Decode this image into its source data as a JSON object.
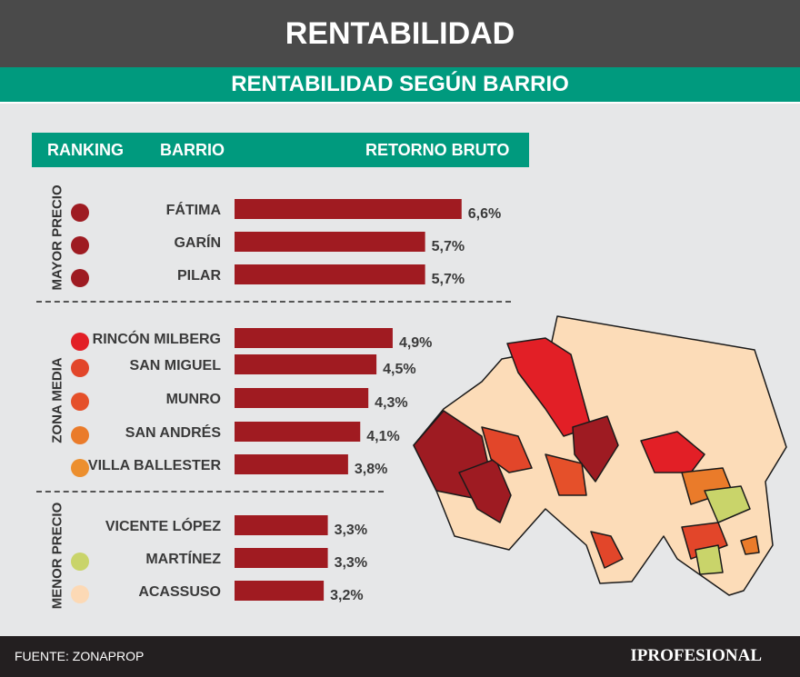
{
  "header": {
    "title": "RENTABILIDAD",
    "subtitle": "RENTABILIDAD SEGÚN BARRIO"
  },
  "table_header": {
    "ranking": "RANKING",
    "barrio": "BARRIO",
    "retorno": "RETORNO BRUTO"
  },
  "groups": [
    {
      "label": "MAYOR PRECIO"
    },
    {
      "label": "ZONA MEDIA"
    },
    {
      "label": "MENOR PRECIO"
    }
  ],
  "chart_data": {
    "type": "bar",
    "orientation": "horizontal",
    "categories": [
      "FÁTIMA",
      "GARÍN",
      "PILAR",
      "RINCÓN MILBERG",
      "SAN MIGUEL",
      "MUNRO",
      "SAN ANDRÉS",
      "VILLA BALLESTER",
      "VICENTE LÓPEZ",
      "MARTÍNEZ",
      "ACASSUSO"
    ],
    "values": [
      6.6,
      5.7,
      5.7,
      4.9,
      4.5,
      4.3,
      4.1,
      3.8,
      3.3,
      3.3,
      3.2
    ],
    "labels": [
      "6,6%",
      "5,7%",
      "5,7%",
      "4,9%",
      "4,5%",
      "4,3%",
      "4,1%",
      "3,8%",
      "3,3%",
      "3,3%",
      "3,2%"
    ],
    "groups": [
      "MAYOR PRECIO",
      "MAYOR PRECIO",
      "MAYOR PRECIO",
      "ZONA MEDIA",
      "ZONA MEDIA",
      "ZONA MEDIA",
      "ZONA MEDIA",
      "ZONA MEDIA",
      "MENOR PRECIO",
      "MENOR PRECIO",
      "MENOR PRECIO"
    ],
    "dot_colors": [
      "#9e1b22",
      "#9e1b22",
      "#9e1b22",
      "#e21f26",
      "#e2462a",
      "#e5502a",
      "#ea7b2a",
      "#ec8f2e",
      null,
      "#c9d46a",
      "#fcd9b5"
    ],
    "bar_color": "#a01b21",
    "xlabel": "RETORNO BRUTO",
    "ylabel": "BARRIO"
  },
  "footer": {
    "source": "FUENTE: ZONAPROP",
    "logo": "IPROFESIONAL"
  }
}
